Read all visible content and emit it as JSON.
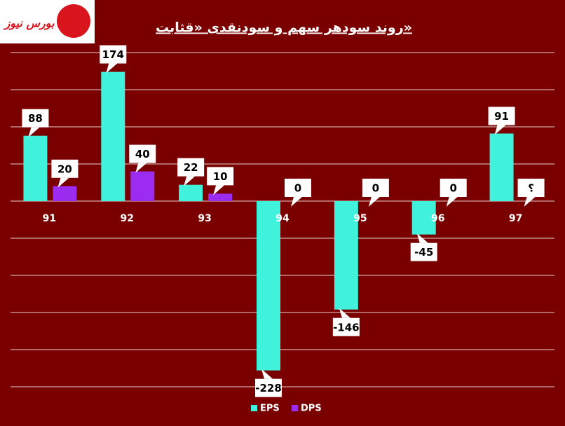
{
  "logo": "بورس نیوز",
  "chart_data": {
    "type": "bar",
    "title": "روند سودهر سهم و سودنقدی «قثابت»",
    "categories": [
      "91",
      "92",
      "93",
      "94",
      "95",
      "96",
      "97"
    ],
    "series": [
      {
        "name": "EPS",
        "color": "#40f2dc",
        "values": [
          88,
          174,
          22,
          -228,
          -146,
          -45,
          91
        ]
      },
      {
        "name": "DPS",
        "color": "#9b2cf0",
        "values": [
          20,
          40,
          10,
          0,
          0,
          0,
          null
        ],
        "value_labels": [
          "20",
          "40",
          "10",
          "0",
          "0",
          "0",
          "؟"
        ]
      }
    ],
    "ylim": [
      -250,
      200
    ],
    "yticks": [
      -250,
      -200,
      -150,
      -100,
      -50,
      0,
      50,
      100,
      150,
      200
    ],
    "grid": true,
    "legend": "bottom"
  }
}
